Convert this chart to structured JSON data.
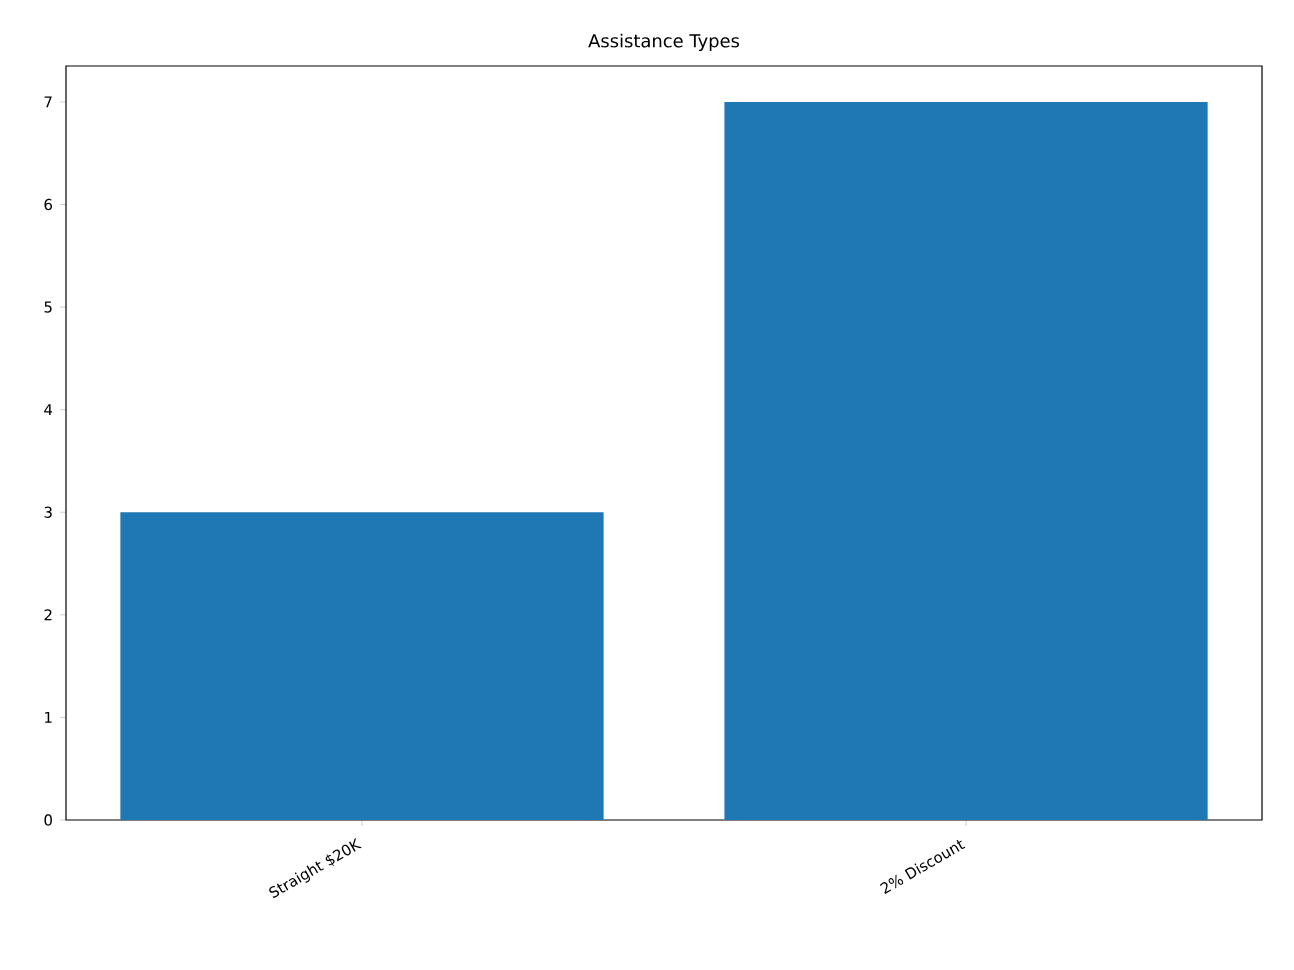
{
  "chart_data": {
    "type": "bar",
    "title": "Assistance Types",
    "categories": [
      "Straight $20K",
      "2% Discount"
    ],
    "values": [
      3,
      7
    ],
    "color": "#1f77b4",
    "ylim": [
      0,
      7.35
    ],
    "yticks": [
      0,
      1,
      2,
      3,
      4,
      5,
      6,
      7
    ],
    "grid": false
  }
}
